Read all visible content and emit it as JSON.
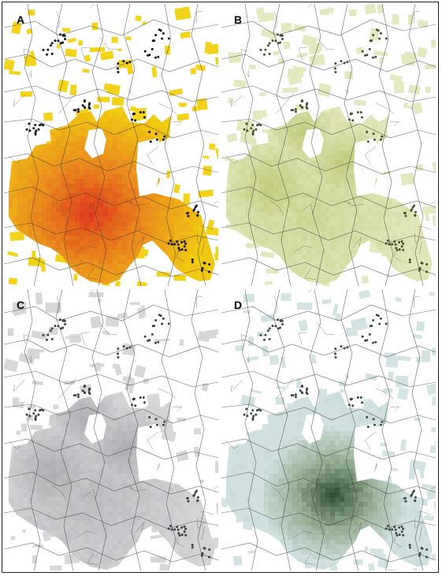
{
  "panels": [
    {
      "id": "a",
      "label": "A",
      "palette": {
        "ring": "#f0cb12",
        "mid": "#e98a1e",
        "core": "#dc2b1f",
        "speck": "#f3d21a",
        "dots": "#111111"
      },
      "core_intensity": 0.95,
      "outer_opacity": 1.0
    },
    {
      "id": "b",
      "label": "B",
      "palette": {
        "ring": "#e1e6b8",
        "mid": "#b8c46f",
        "core": "#6f7f2c",
        "speck": "#e3e8bf",
        "dots": "#4a4f33"
      },
      "core_intensity": 0.45,
      "outer_opacity": 1.0
    },
    {
      "id": "c",
      "label": "C",
      "palette": {
        "ring": "#d3d4d6",
        "mid": "#a9abae",
        "core": "#6d7074",
        "speck": "#d6d7d9",
        "dots": "#3e4044"
      },
      "core_intensity": 0.55,
      "outer_opacity": 1.0
    },
    {
      "id": "d",
      "label": "D",
      "palette": {
        "ring": "#cfe0df",
        "mid": "#8ea889",
        "core": "#1f3f1d",
        "speck": "#d3e3e2",
        "dots": "#3d4a4a"
      },
      "core_intensity": 0.95,
      "outer_opacity": 1.0
    }
  ]
}
